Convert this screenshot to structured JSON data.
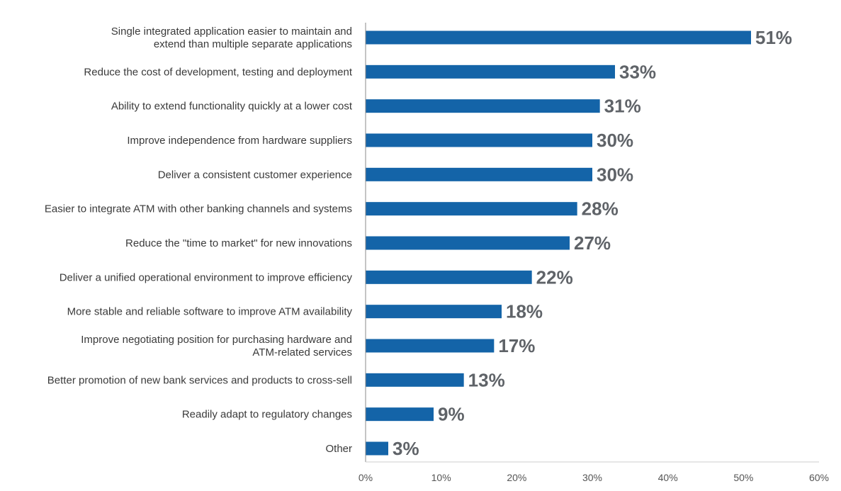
{
  "chart_data": {
    "type": "bar",
    "orientation": "horizontal",
    "title": "",
    "xlabel": "",
    "ylabel": "",
    "xlim": [
      0,
      60
    ],
    "grid": false,
    "legend": "none",
    "bar_color": "#1464a8",
    "value_label_color": "#5f6368",
    "categories": [
      [
        "Single integrated application easier to maintain and",
        "extend than multiple separate applications"
      ],
      [
        "Reduce the cost of development, testing and deployment"
      ],
      [
        "Ability to extend functionality quickly at a lower cost"
      ],
      [
        "Improve independence from hardware suppliers"
      ],
      [
        "Deliver a consistent customer experience"
      ],
      [
        "Easier to integrate ATM with other banking channels and systems"
      ],
      [
        "Reduce the \"time to market\" for new innovations"
      ],
      [
        "Deliver a unified operational environment to improve efficiency"
      ],
      [
        "More stable and reliable software to improve ATM availability"
      ],
      [
        "Improve negotiating position for purchasing hardware and",
        "ATM-related services"
      ],
      [
        "Better promotion of new bank services and products to cross-sell"
      ],
      [
        "Readily adapt to regulatory changes"
      ],
      [
        "Other"
      ]
    ],
    "values": [
      51,
      33,
      31,
      30,
      30,
      28,
      27,
      22,
      18,
      17,
      13,
      9,
      3
    ],
    "value_labels": [
      "51%",
      "33%",
      "31%",
      "30%",
      "30%",
      "28%",
      "27%",
      "22%",
      "18%",
      "17%",
      "13%",
      "9%",
      "3%"
    ],
    "x_ticks": [
      0,
      10,
      20,
      30,
      40,
      50,
      60
    ],
    "x_tick_labels": [
      "0%",
      "10%",
      "20%",
      "30%",
      "40%",
      "50%",
      "60%"
    ]
  }
}
